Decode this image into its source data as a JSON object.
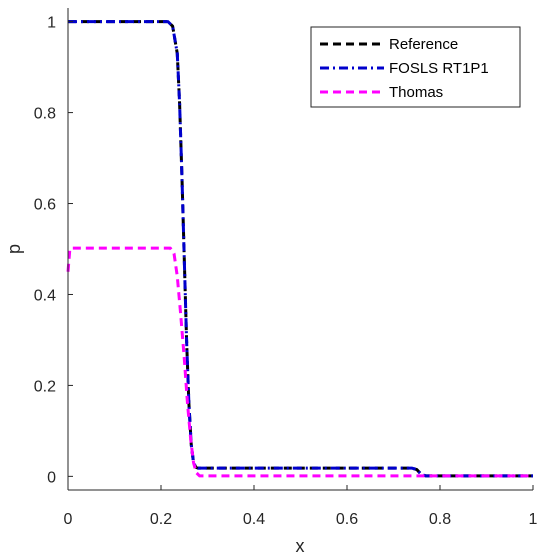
{
  "chart_data": {
    "type": "line",
    "title": "",
    "xlabel": "x",
    "ylabel": "p",
    "xlim": [
      0,
      1
    ],
    "ylim": [
      -0.03,
      1.03
    ],
    "xticks": [
      0,
      0.2,
      0.4,
      0.6,
      0.8,
      1
    ],
    "xtick_labels": [
      "0",
      "0.2",
      "0.4",
      "0.6",
      "0.8",
      "1"
    ],
    "yticks": [
      0,
      0.2,
      0.4,
      0.6,
      0.8,
      1
    ],
    "ytick_labels": [
      "0",
      "0.2",
      "0.4",
      "0.6",
      "0.8",
      "1"
    ],
    "grid": false,
    "legend_position": "top-right",
    "series": [
      {
        "name": "Reference",
        "color": "#000000",
        "style": "dashed",
        "x": [
          0,
          0.215,
          0.225,
          0.235,
          0.24,
          0.245,
          0.25,
          0.255,
          0.26,
          0.265,
          0.27,
          0.275,
          0.28,
          0.74,
          0.75,
          0.76,
          0.77,
          1
        ],
        "y": [
          1,
          1,
          0.99,
          0.93,
          0.82,
          0.66,
          0.48,
          0.3,
          0.16,
          0.07,
          0.03,
          0.02,
          0.018,
          0.018,
          0.015,
          0.004,
          0.001,
          0.001
        ]
      },
      {
        "name": "FOSLS RT1P1",
        "color": "#0000cc",
        "style": "dashdot",
        "x": [
          0,
          0.215,
          0.225,
          0.235,
          0.24,
          0.245,
          0.25,
          0.255,
          0.26,
          0.265,
          0.27,
          0.275,
          0.28,
          0.74,
          0.75,
          0.76,
          0.77,
          1
        ],
        "y": [
          1,
          1,
          0.99,
          0.93,
          0.82,
          0.66,
          0.48,
          0.3,
          0.16,
          0.07,
          0.03,
          0.02,
          0.018,
          0.018,
          0.015,
          0.004,
          0.001,
          0.001
        ]
      },
      {
        "name": "Thomas",
        "color": "#ff00ff",
        "style": "dashed",
        "x": [
          0,
          0.004,
          0.008,
          0.22,
          0.228,
          0.235,
          0.242,
          0.25,
          0.257,
          0.264,
          0.27,
          0.276,
          0.283,
          1
        ],
        "y": [
          0.45,
          0.5,
          0.502,
          0.502,
          0.49,
          0.44,
          0.36,
          0.26,
          0.16,
          0.08,
          0.03,
          0.008,
          0.001,
          0.001
        ]
      }
    ]
  }
}
